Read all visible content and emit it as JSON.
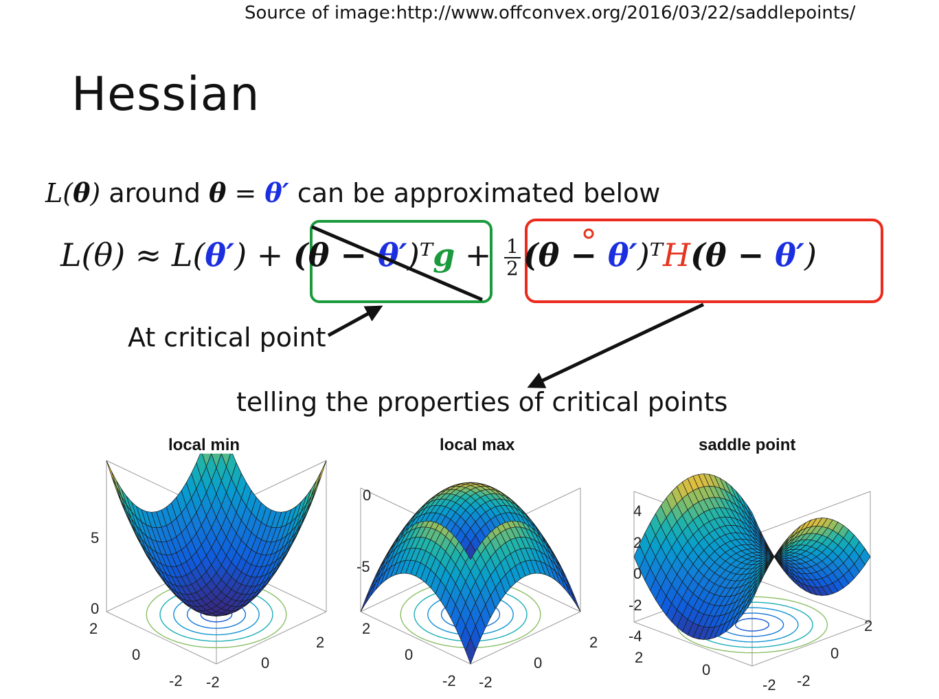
{
  "source": "Source of image:http://www.offconvex.org/2016/03/22/saddlepoints/",
  "title": "Hessian",
  "intro": {
    "L": "L",
    "theta": "θ",
    "around": " around ",
    "eq": " = ",
    "theta_prime": "θ′",
    "rest": " can be approximated below"
  },
  "formula": {
    "lhs": "L(θ) ≈ L(",
    "theta_prime": "θ′",
    "plus": ") + ",
    "grad_open": "(θ − ",
    "grad_theta_prime": "θ′",
    "grad_close": ")ᵀ",
    "g": "g",
    "plus2": " + ",
    "half_num": "1",
    "half_den": "2",
    "hess_open": "(θ − ",
    "hess_theta_prime": "θ′",
    "hess_mid": ")ᵀ",
    "H": "H",
    "hess_open2": "(θ − ",
    "hess_theta_prime2": "θ′",
    "hess_close": ")"
  },
  "labels": {
    "critical": "At critical point",
    "telling": "telling the properties of critical points"
  },
  "plots": [
    {
      "title": "local min",
      "z_ticks": [
        "5",
        "0"
      ],
      "x_ticks": [
        "2",
        "0",
        "-2"
      ],
      "y_ticks": [
        "-2",
        "0",
        "2"
      ]
    },
    {
      "title": "local max",
      "z_ticks": [
        "0",
        "-5"
      ],
      "x_ticks": [
        "2",
        "0",
        "-2"
      ],
      "y_ticks": [
        "-2",
        "0",
        "2"
      ]
    },
    {
      "title": "saddle point",
      "z_ticks": [
        "4",
        "2",
        "0",
        "-2",
        "-4"
      ],
      "x_ticks": [
        "2",
        "0",
        "-2"
      ],
      "y_ticks": [
        "-2",
        "0",
        "2"
      ]
    }
  ],
  "colors": {
    "blue": "#1b2fe0",
    "green": "#1a9a3c",
    "red": "#e4331f"
  }
}
